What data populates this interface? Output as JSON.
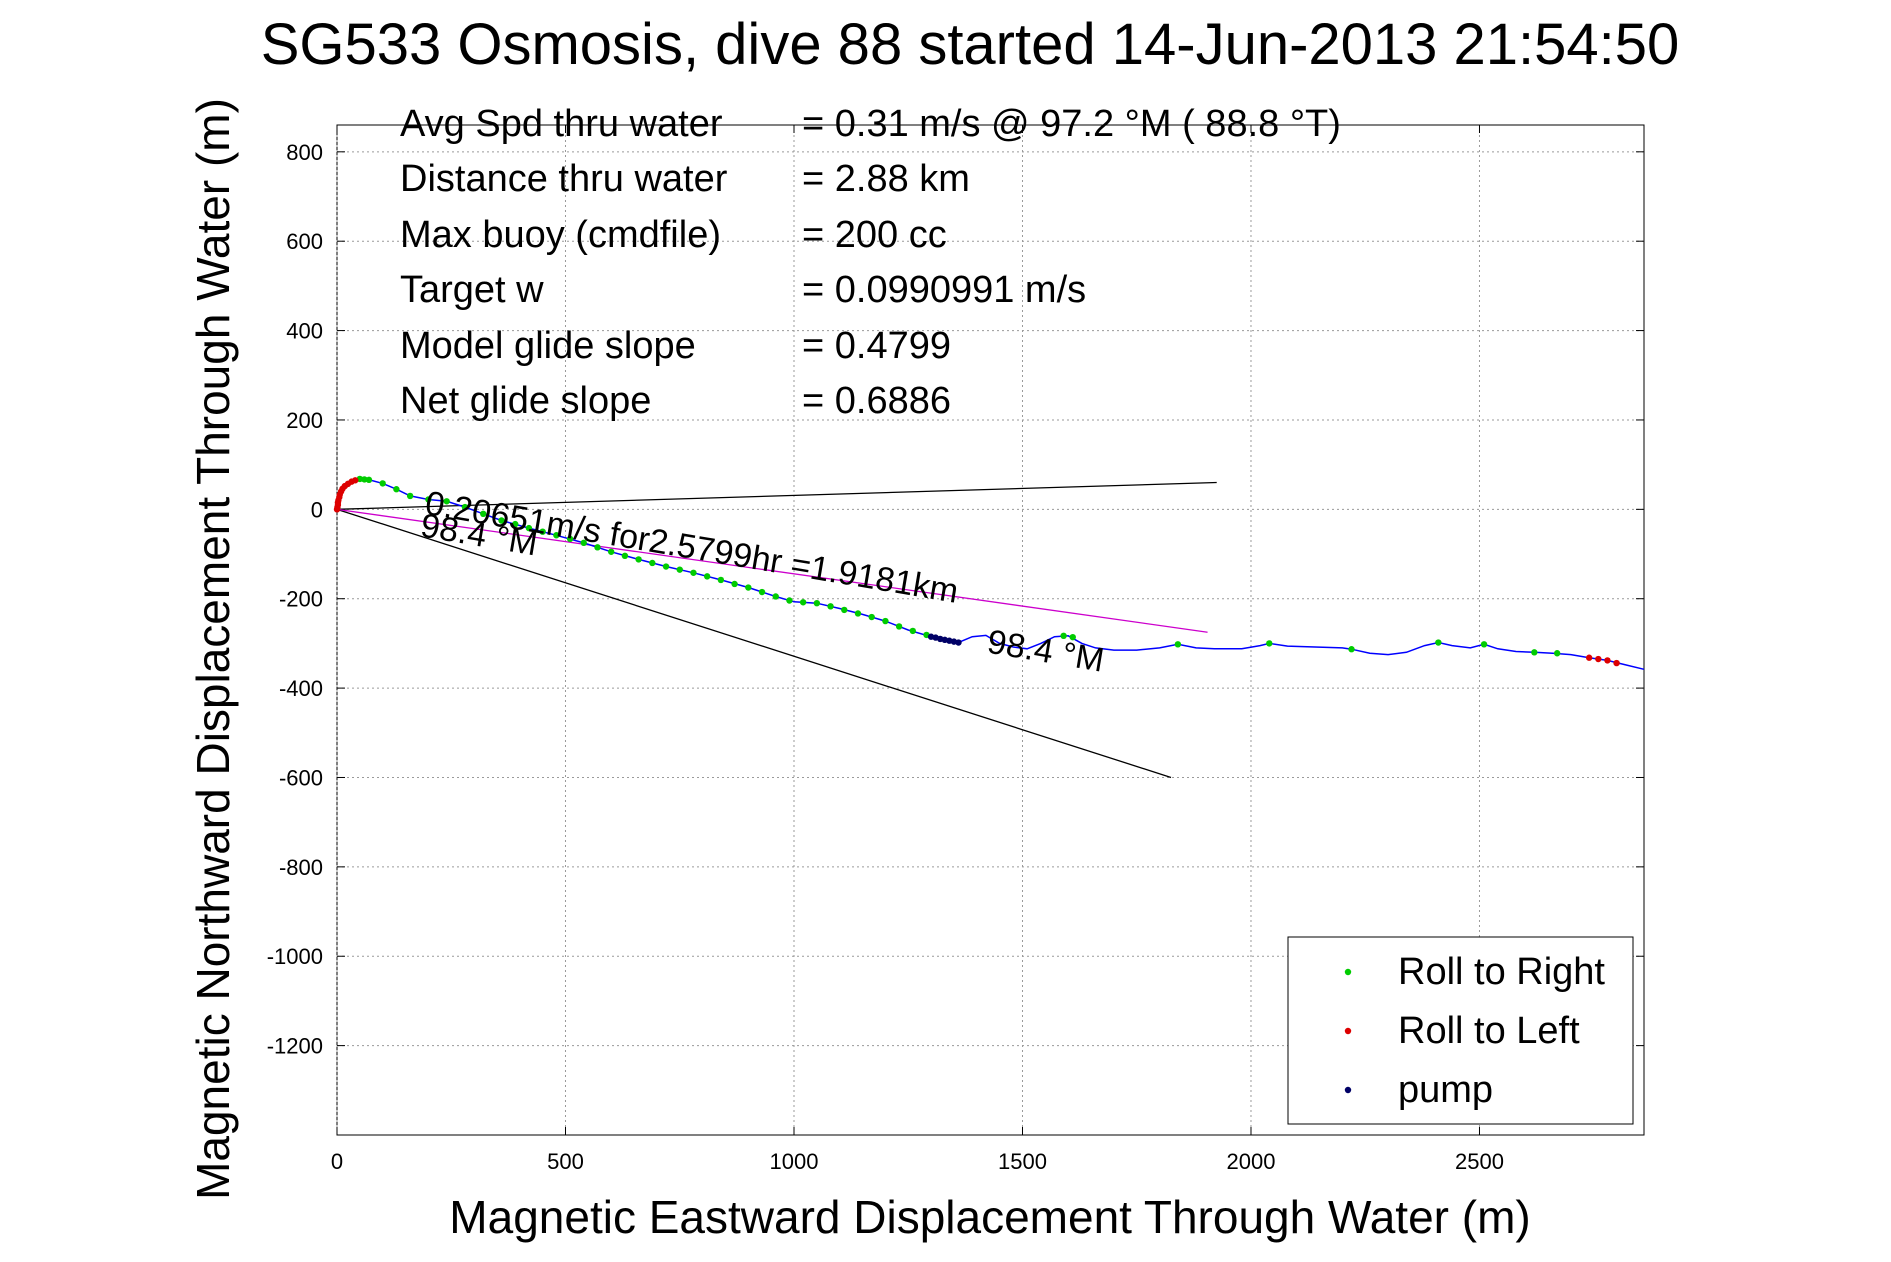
{
  "chart_data": {
    "type": "scatter",
    "title": "SG533 Osmosis, dive 88 started 14-Jun-2013 21:54:50",
    "xlabel": "Magnetic Eastward Displacement Through Water (m)",
    "ylabel": "Magnetic Northward Displacement Through Water (m)",
    "xlim": [
      0,
      2860
    ],
    "ylim": [
      -1400,
      860
    ],
    "x_ticks": [
      0,
      500,
      1000,
      1500,
      2000,
      2500
    ],
    "y_ticks": [
      800,
      600,
      400,
      200,
      0,
      -200,
      -400,
      -600,
      -800,
      -1000,
      -1200
    ],
    "grid": true,
    "legend_position": "bottom-right",
    "stats": [
      {
        "label": "Avg Spd thru water",
        "value": "=  0.31 m/s @  97.2 °M ( 88.8 °T)"
      },
      {
        "label": "Distance thru water",
        "value": "=  2.88 km"
      },
      {
        "label": "Max buoy (cmdfile)",
        "value": "= 200 cc"
      },
      {
        "label": "Target w",
        "value": "= 0.0990991 m/s"
      },
      {
        "label": "Model glide slope",
        "value": "= 0.4799"
      },
      {
        "label": "Net glide slope",
        "value": "= 0.6886"
      }
    ],
    "annotations": [
      {
        "text": "0.20651m/s for2.5799hr =1.9181km",
        "x": 190,
        "y": -10,
        "rotation_deg": 9.5
      },
      {
        "text": "98.4 °M",
        "x": 180,
        "y": -60,
        "rotation_deg": 9.5
      },
      {
        "text": "98.4 °M",
        "x": 1420,
        "y": -320,
        "rotation_deg": 9.5
      }
    ],
    "track": {
      "name": "track",
      "color": "#0000ff",
      "points": [
        [
          0,
          0
        ],
        [
          2,
          20
        ],
        [
          8,
          40
        ],
        [
          20,
          55
        ],
        [
          40,
          65
        ],
        [
          70,
          66
        ],
        [
          100,
          58
        ],
        [
          130,
          45
        ],
        [
          160,
          30
        ],
        [
          200,
          22
        ],
        [
          240,
          18
        ],
        [
          280,
          5
        ],
        [
          320,
          -10
        ],
        [
          360,
          -25
        ],
        [
          420,
          -42
        ],
        [
          480,
          -58
        ],
        [
          540,
          -75
        ],
        [
          600,
          -95
        ],
        [
          660,
          -112
        ],
        [
          720,
          -128
        ],
        [
          780,
          -142
        ],
        [
          840,
          -158
        ],
        [
          900,
          -175
        ],
        [
          960,
          -195
        ],
        [
          1000,
          -207
        ],
        [
          1050,
          -210
        ],
        [
          1100,
          -222
        ],
        [
          1150,
          -235
        ],
        [
          1200,
          -250
        ],
        [
          1250,
          -270
        ],
        [
          1300,
          -285
        ],
        [
          1330,
          -292
        ],
        [
          1360,
          -298
        ],
        [
          1390,
          -285
        ],
        [
          1420,
          -282
        ],
        [
          1450,
          -300
        ],
        [
          1480,
          -308
        ],
        [
          1510,
          -312
        ],
        [
          1540,
          -300
        ],
        [
          1570,
          -285
        ],
        [
          1600,
          -283
        ],
        [
          1630,
          -300
        ],
        [
          1660,
          -310
        ],
        [
          1700,
          -315
        ],
        [
          1750,
          -315
        ],
        [
          1800,
          -310
        ],
        [
          1840,
          -302
        ],
        [
          1880,
          -310
        ],
        [
          1920,
          -312
        ],
        [
          1980,
          -312
        ],
        [
          2020,
          -305
        ],
        [
          2040,
          -300
        ],
        [
          2080,
          -306
        ],
        [
          2140,
          -308
        ],
        [
          2200,
          -310
        ],
        [
          2220,
          -313
        ],
        [
          2260,
          -322
        ],
        [
          2300,
          -325
        ],
        [
          2340,
          -320
        ],
        [
          2380,
          -305
        ],
        [
          2410,
          -298
        ],
        [
          2440,
          -305
        ],
        [
          2480,
          -310
        ],
        [
          2510,
          -302
        ],
        [
          2540,
          -312
        ],
        [
          2580,
          -318
        ],
        [
          2620,
          -320
        ],
        [
          2660,
          -322
        ],
        [
          2700,
          -325
        ],
        [
          2740,
          -332
        ],
        [
          2780,
          -338
        ],
        [
          2820,
          -348
        ],
        [
          2860,
          -358
        ]
      ]
    },
    "series": [
      {
        "name": "Roll to Right",
        "color": "#00cc00",
        "marker": "dot",
        "points": [
          [
            50,
            68
          ],
          [
            60,
            67
          ],
          [
            70,
            66
          ],
          [
            100,
            58
          ],
          [
            130,
            45
          ],
          [
            160,
            30
          ],
          [
            200,
            22
          ],
          [
            240,
            18
          ],
          [
            280,
            5
          ],
          [
            320,
            -10
          ],
          [
            360,
            -25
          ],
          [
            390,
            -33
          ],
          [
            420,
            -42
          ],
          [
            450,
            -50
          ],
          [
            480,
            -58
          ],
          [
            510,
            -66
          ],
          [
            540,
            -75
          ],
          [
            570,
            -85
          ],
          [
            600,
            -95
          ],
          [
            630,
            -104
          ],
          [
            660,
            -112
          ],
          [
            690,
            -120
          ],
          [
            720,
            -128
          ],
          [
            750,
            -135
          ],
          [
            780,
            -142
          ],
          [
            810,
            -150
          ],
          [
            840,
            -158
          ],
          [
            870,
            -167
          ],
          [
            900,
            -175
          ],
          [
            930,
            -185
          ],
          [
            960,
            -195
          ],
          [
            990,
            -204
          ],
          [
            1020,
            -208
          ],
          [
            1050,
            -210
          ],
          [
            1080,
            -217
          ],
          [
            1110,
            -225
          ],
          [
            1140,
            -233
          ],
          [
            1170,
            -241
          ],
          [
            1200,
            -250
          ],
          [
            1230,
            -262
          ],
          [
            1260,
            -272
          ],
          [
            1290,
            -281
          ],
          [
            1590,
            -283
          ],
          [
            1610,
            -286
          ],
          [
            1840,
            -302
          ],
          [
            2040,
            -300
          ],
          [
            2220,
            -313
          ],
          [
            2410,
            -298
          ],
          [
            2510,
            -302
          ],
          [
            2620,
            -320
          ],
          [
            2670,
            -322
          ]
        ]
      },
      {
        "name": "Roll to Left",
        "color": "#dd0000",
        "marker": "dot",
        "points": [
          [
            0,
            0
          ],
          [
            1,
            5
          ],
          [
            2,
            10
          ],
          [
            2,
            15
          ],
          [
            3,
            20
          ],
          [
            5,
            27
          ],
          [
            6,
            33
          ],
          [
            9,
            40
          ],
          [
            12,
            46
          ],
          [
            17,
            52
          ],
          [
            24,
            57
          ],
          [
            32,
            62
          ],
          [
            40,
            65
          ],
          [
            2740,
            -332
          ],
          [
            2760,
            -335
          ],
          [
            2780,
            -338
          ],
          [
            2800,
            -344
          ]
        ]
      },
      {
        "name": "pump",
        "color": "#000066",
        "marker": "dot",
        "points": [
          [
            1300,
            -285
          ],
          [
            1310,
            -287
          ],
          [
            1320,
            -290
          ],
          [
            1330,
            -292
          ],
          [
            1340,
            -294
          ],
          [
            1350,
            -296
          ],
          [
            1360,
            -298
          ]
        ]
      }
    ],
    "lines": [
      {
        "name": "heading-line-upper",
        "color": "#000000",
        "from": [
          0,
          0
        ],
        "to": [
          1925,
          60
        ]
      },
      {
        "name": "heading-line-lower",
        "color": "#000000",
        "from": [
          0,
          0
        ],
        "to": [
          1825,
          -600
        ]
      },
      {
        "name": "current-line",
        "color": "#cc00cc",
        "from": [
          0,
          0
        ],
        "to": [
          1905,
          -275
        ]
      }
    ]
  }
}
